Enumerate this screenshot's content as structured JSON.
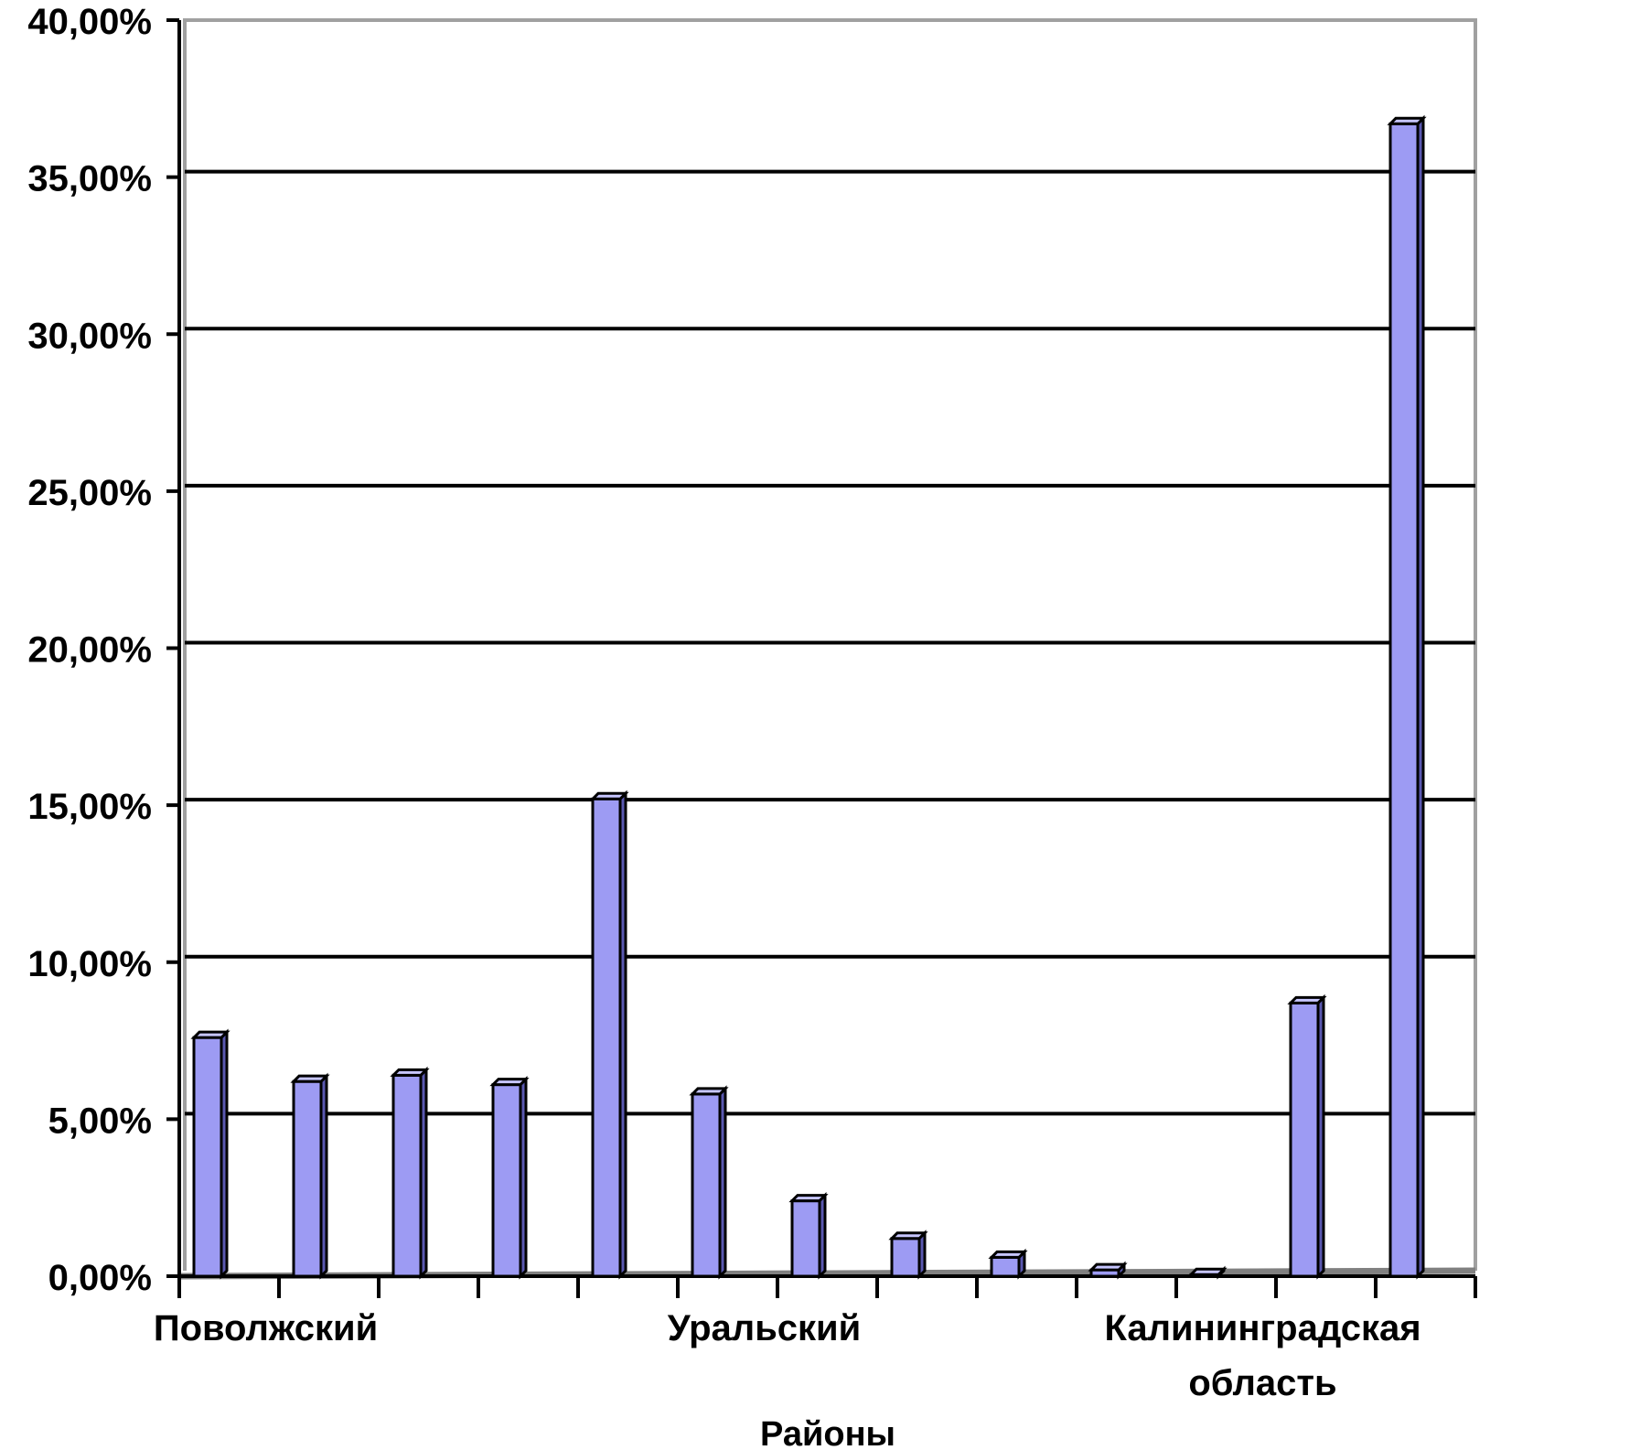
{
  "chart_data": {
    "type": "bar",
    "categories": [
      "Поволжский",
      "",
      "",
      "",
      "",
      "Уральский",
      "",
      "",
      "",
      "",
      "Калининградская область",
      "",
      ""
    ],
    "values": [
      7.6,
      6.2,
      6.4,
      6.1,
      15.2,
      5.8,
      2.4,
      1.2,
      0.6,
      0.2,
      0.05,
      8.7,
      36.7
    ],
    "xlabel": "Районы",
    "ylabel": "",
    "ylim": [
      0,
      40
    ],
    "yticks": [
      "0,00%",
      "5,00%",
      "10,00%",
      "15,00%",
      "20,00%",
      "25,00%",
      "30,00%",
      "35,00%",
      "40,00%"
    ],
    "xtick_labels": [
      {
        "lines": [
          "Поволжский"
        ]
      },
      {
        "lines": [
          "Уральский"
        ]
      },
      {
        "lines": [
          "Калининградская",
          "область"
        ]
      }
    ],
    "grid": true,
    "colors": {
      "bar_front": "#9d9bf3",
      "bar_side": "#5a58b0",
      "bar_top": "#c7c6ff",
      "gridline": "#000000",
      "floor": "#808080",
      "frame": "#a0a0a0"
    }
  }
}
